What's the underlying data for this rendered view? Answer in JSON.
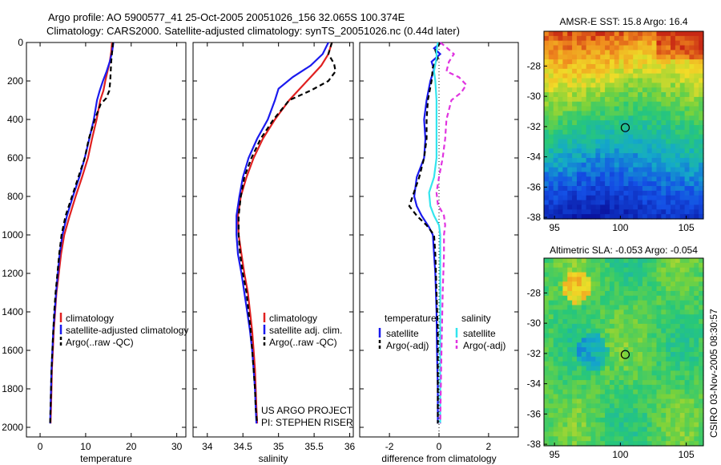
{
  "title_line1": "Argo profile: AO 5900577_41 25-Oct-2005 20051026_156 32.065S 100.374E",
  "title_line2": "Climatology: CARS2000. Satellite-adjusted climatology: synTS_20051026.nc (0.44d later)",
  "credit_line1": "US ARGO PROJECT",
  "credit_line2": "PI: STEPHEN RISER",
  "side_stamp": "CSIRO 03-Nov-2005 08:30:57",
  "colors": {
    "climatology": "#e02020",
    "satellite": "#1a1aee",
    "argo": "#000000",
    "satellite_salinity": "#33e5ee",
    "argo_salinity": "#e033e0"
  },
  "chart_data": [
    {
      "type": "line",
      "name": "temperature-profile",
      "xlabel": "temperature",
      "ylim": [
        2050,
        0
      ],
      "xlim": [
        -3,
        32
      ],
      "yticks": [
        0,
        200,
        400,
        600,
        800,
        1000,
        1200,
        1400,
        1600,
        1800,
        2000
      ],
      "xticks": [
        0,
        10,
        20,
        30
      ],
      "legend": [
        "climatology",
        "satellite-adjusted climatology",
        "Argo(..raw -QC)"
      ],
      "series": [
        {
          "name": "climatology",
          "color": "#e02020",
          "dash": "",
          "points": [
            [
              15.8,
              0
            ],
            [
              15.6,
              50
            ],
            [
              15.3,
              100
            ],
            [
              14.8,
              150
            ],
            [
              14.3,
              200
            ],
            [
              13.9,
              250
            ],
            [
              13.2,
              300
            ],
            [
              12.4,
              400
            ],
            [
              11.4,
              500
            ],
            [
              10.5,
              600
            ],
            [
              9.2,
              700
            ],
            [
              7.8,
              800
            ],
            [
              6.5,
              900
            ],
            [
              5.3,
              1000
            ],
            [
              4.6,
              1100
            ],
            [
              4.1,
              1200
            ],
            [
              3.6,
              1300
            ],
            [
              3.3,
              1400
            ],
            [
              3.0,
              1500
            ],
            [
              2.8,
              1600
            ],
            [
              2.6,
              1700
            ],
            [
              2.5,
              1800
            ],
            [
              2.4,
              1900
            ],
            [
              2.3,
              1980
            ]
          ]
        },
        {
          "name": "satellite-adjusted climatology",
          "color": "#1a1aee",
          "dash": "",
          "points": [
            [
              16.1,
              0
            ],
            [
              15.8,
              50
            ],
            [
              15.3,
              100
            ],
            [
              14.6,
              150
            ],
            [
              13.8,
              200
            ],
            [
              13.1,
              250
            ],
            [
              12.5,
              300
            ],
            [
              11.8,
              400
            ],
            [
              10.8,
              500
            ],
            [
              9.8,
              600
            ],
            [
              8.6,
              700
            ],
            [
              7.2,
              800
            ],
            [
              5.9,
              900
            ],
            [
              4.9,
              1000
            ],
            [
              4.3,
              1100
            ],
            [
              3.9,
              1200
            ],
            [
              3.5,
              1300
            ],
            [
              3.2,
              1400
            ],
            [
              2.9,
              1500
            ],
            [
              2.7,
              1600
            ],
            [
              2.5,
              1700
            ],
            [
              2.4,
              1800
            ],
            [
              2.3,
              1900
            ],
            [
              2.2,
              1980
            ]
          ]
        },
        {
          "name": "Argo(..raw -QC)",
          "color": "#000000",
          "dash": "6,4",
          "points": [
            [
              16.0,
              0
            ],
            [
              15.8,
              50
            ],
            [
              15.6,
              100
            ],
            [
              15.5,
              150
            ],
            [
              15.4,
              200
            ],
            [
              15.2,
              250
            ],
            [
              14.5,
              290
            ],
            [
              13.3,
              320
            ],
            [
              12.0,
              400
            ],
            [
              10.7,
              500
            ],
            [
              9.8,
              600
            ],
            [
              8.4,
              700
            ],
            [
              7.0,
              800
            ],
            [
              5.6,
              900
            ],
            [
              4.7,
              1000
            ],
            [
              4.2,
              1100
            ],
            [
              3.8,
              1200
            ],
            [
              3.4,
              1300
            ],
            [
              3.1,
              1400
            ],
            [
              2.9,
              1500
            ],
            [
              2.7,
              1600
            ],
            [
              2.5,
              1700
            ],
            [
              2.4,
              1800
            ],
            [
              2.3,
              1900
            ],
            [
              2.2,
              1980
            ]
          ]
        }
      ]
    },
    {
      "type": "line",
      "name": "salinity-profile",
      "xlabel": "salinity",
      "ylim": [
        2050,
        0
      ],
      "xlim": [
        33.8,
        36.05
      ],
      "xticks": [
        34,
        34.5,
        35,
        35.5,
        36
      ],
      "legend": [
        "climatology",
        "satellite adj. clim.",
        "Argo(..raw -QC)"
      ],
      "series": [
        {
          "name": "climatology",
          "color": "#e02020",
          "dash": "",
          "points": [
            [
              35.75,
              0
            ],
            [
              35.7,
              60
            ],
            [
              35.6,
              120
            ],
            [
              35.45,
              180
            ],
            [
              35.3,
              240
            ],
            [
              35.15,
              300
            ],
            [
              34.95,
              400
            ],
            [
              34.78,
              500
            ],
            [
              34.65,
              600
            ],
            [
              34.55,
              700
            ],
            [
              34.47,
              800
            ],
            [
              34.43,
              900
            ],
            [
              34.44,
              1000
            ],
            [
              34.48,
              1100
            ],
            [
              34.52,
              1200
            ],
            [
              34.57,
              1300
            ],
            [
              34.6,
              1400
            ],
            [
              34.63,
              1500
            ],
            [
              34.65,
              1600
            ],
            [
              34.67,
              1700
            ],
            [
              34.68,
              1800
            ],
            [
              34.69,
              1900
            ],
            [
              34.7,
              1980
            ]
          ]
        },
        {
          "name": "satellite adj. clim.",
          "color": "#1a1aee",
          "dash": "",
          "points": [
            [
              35.7,
              0
            ],
            [
              35.62,
              60
            ],
            [
              35.45,
              120
            ],
            [
              35.2,
              180
            ],
            [
              35.0,
              240
            ],
            [
              34.95,
              300
            ],
            [
              34.85,
              400
            ],
            [
              34.7,
              500
            ],
            [
              34.58,
              600
            ],
            [
              34.5,
              700
            ],
            [
              34.45,
              800
            ],
            [
              34.41,
              900
            ],
            [
              34.41,
              1000
            ],
            [
              34.43,
              1100
            ],
            [
              34.48,
              1200
            ],
            [
              34.52,
              1300
            ],
            [
              34.56,
              1400
            ],
            [
              34.6,
              1500
            ],
            [
              34.63,
              1600
            ],
            [
              34.65,
              1700
            ],
            [
              34.67,
              1800
            ],
            [
              34.68,
              1900
            ],
            [
              34.69,
              1980
            ]
          ]
        },
        {
          "name": "Argo(..raw -QC)",
          "color": "#000000",
          "dash": "6,4",
          "points": [
            [
              35.75,
              0
            ],
            [
              35.7,
              60
            ],
            [
              35.78,
              110
            ],
            [
              35.8,
              150
            ],
            [
              35.7,
              200
            ],
            [
              35.45,
              250
            ],
            [
              35.15,
              300
            ],
            [
              34.93,
              400
            ],
            [
              34.75,
              500
            ],
            [
              34.62,
              600
            ],
            [
              34.52,
              700
            ],
            [
              34.47,
              800
            ],
            [
              34.44,
              900
            ],
            [
              34.44,
              1000
            ],
            [
              34.46,
              1100
            ],
            [
              34.5,
              1200
            ],
            [
              34.55,
              1300
            ],
            [
              34.58,
              1400
            ],
            [
              34.61,
              1500
            ],
            [
              34.63,
              1600
            ],
            [
              34.65,
              1700
            ],
            [
              34.67,
              1800
            ],
            [
              34.68,
              1900
            ],
            [
              34.7,
              1980
            ]
          ]
        }
      ]
    },
    {
      "type": "line",
      "name": "difference-profile",
      "xlabel": "difference from climatology",
      "ylim": [
        2050,
        0
      ],
      "xlim": [
        -3.2,
        3.2
      ],
      "xticks": [
        -2,
        0,
        2
      ],
      "legend_groups": [
        {
          "title": "temperature",
          "entries": [
            "satellite",
            "Argo(-adj)"
          ]
        },
        {
          "title": "salinity",
          "entries": [
            "satellite",
            "Argo(-adj)"
          ]
        }
      ],
      "series": [
        {
          "name": "temperature satellite",
          "color": "#1a1aee",
          "dash": "",
          "points": [
            [
              0.1,
              0
            ],
            [
              -0.2,
              30
            ],
            [
              0.05,
              60
            ],
            [
              -0.3,
              100
            ],
            [
              -0.2,
              140
            ],
            [
              -0.35,
              200
            ],
            [
              -0.5,
              300
            ],
            [
              -0.6,
              400
            ],
            [
              -0.55,
              500
            ],
            [
              -0.6,
              600
            ],
            [
              -0.9,
              700
            ],
            [
              -1.0,
              800
            ],
            [
              -0.9,
              850
            ],
            [
              -0.7,
              900
            ],
            [
              -0.4,
              960
            ],
            [
              -0.25,
              1000
            ],
            [
              -0.2,
              1100
            ],
            [
              -0.15,
              1200
            ],
            [
              -0.1,
              1400
            ],
            [
              -0.08,
              1600
            ],
            [
              -0.05,
              1800
            ],
            [
              -0.05,
              1980
            ]
          ]
        },
        {
          "name": "temperature Argo(-adj)",
          "color": "#000000",
          "dash": "6,4",
          "points": [
            [
              0.05,
              0
            ],
            [
              -0.15,
              40
            ],
            [
              -0.05,
              80
            ],
            [
              -0.25,
              130
            ],
            [
              -0.3,
              200
            ],
            [
              -0.45,
              300
            ],
            [
              -0.5,
              400
            ],
            [
              -0.5,
              500
            ],
            [
              -0.6,
              600
            ],
            [
              -0.8,
              700
            ],
            [
              -1.2,
              850
            ],
            [
              -0.9,
              900
            ],
            [
              -0.5,
              950
            ],
            [
              -0.2,
              1000
            ],
            [
              -0.15,
              1100
            ],
            [
              -0.1,
              1300
            ],
            [
              -0.05,
              1500
            ],
            [
              -0.05,
              1980
            ]
          ]
        },
        {
          "name": "salinity satellite",
          "color": "#33e5ee",
          "dash": "",
          "points": [
            [
              -0.05,
              0
            ],
            [
              -0.1,
              40
            ],
            [
              -0.1,
              80
            ],
            [
              -0.2,
              150
            ],
            [
              -0.15,
              200
            ],
            [
              -0.1,
              300
            ],
            [
              -0.1,
              400
            ],
            [
              -0.1,
              500
            ],
            [
              -0.1,
              600
            ],
            [
              -0.2,
              700
            ],
            [
              -0.4,
              780
            ],
            [
              -0.35,
              850
            ],
            [
              -0.2,
              900
            ],
            [
              0.0,
              950
            ],
            [
              0.05,
              1000
            ],
            [
              0.05,
              1200
            ],
            [
              0.05,
              1500
            ],
            [
              0.05,
              1800
            ],
            [
              0.05,
              1980
            ]
          ]
        },
        {
          "name": "salinity Argo(-adj)",
          "color": "#e033e0",
          "dash": "6,4",
          "points": [
            [
              0.05,
              0
            ],
            [
              0.25,
              20
            ],
            [
              0.6,
              60
            ],
            [
              0.4,
              100
            ],
            [
              0.3,
              150
            ],
            [
              0.8,
              180
            ],
            [
              1.1,
              220
            ],
            [
              0.9,
              260
            ],
            [
              0.5,
              300
            ],
            [
              0.3,
              400
            ],
            [
              0.25,
              500
            ],
            [
              0.15,
              600
            ],
            [
              0.0,
              700
            ],
            [
              -0.1,
              780
            ],
            [
              -0.05,
              840
            ],
            [
              0.2,
              900
            ],
            [
              0.25,
              950
            ],
            [
              0.2,
              1000
            ],
            [
              0.2,
              1100
            ],
            [
              0.15,
              1300
            ],
            [
              0.1,
              1600
            ],
            [
              0.05,
              1980
            ]
          ]
        }
      ]
    },
    {
      "type": "heatmap",
      "name": "sst-map",
      "title": "AMSR-E SST: 15.8 Argo: 16.4",
      "xlim": [
        94.2,
        106.3
      ],
      "ylim": [
        -38.1,
        -25.7
      ],
      "xticks": [
        95,
        100,
        105
      ],
      "yticks": [
        -28,
        -30,
        -32,
        -34,
        -36,
        -38
      ],
      "marker": [
        100.37,
        -32.07
      ]
    },
    {
      "type": "heatmap",
      "name": "sla-map",
      "title": "Altimetric SLA: -0.053 Argo: -0.054",
      "xlim": [
        94.2,
        106.3
      ],
      "ylim": [
        -38.1,
        -25.7
      ],
      "xticks": [
        95,
        100,
        105
      ],
      "yticks": [
        -28,
        -30,
        -32,
        -34,
        -36,
        -38
      ],
      "marker": [
        100.37,
        -32.07
      ]
    }
  ]
}
